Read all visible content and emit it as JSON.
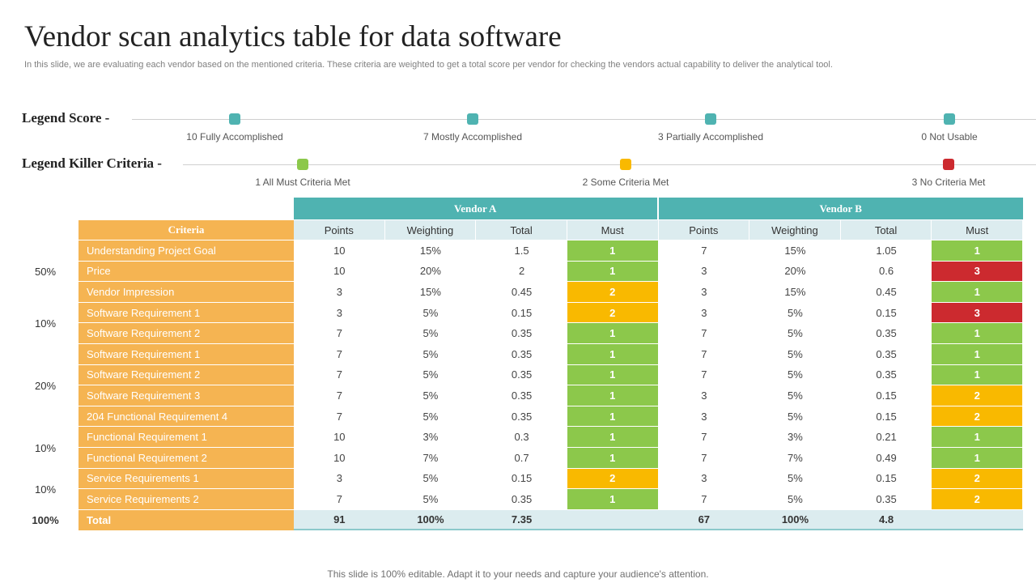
{
  "title": "Vendor scan analytics table for data software",
  "subtitle": "In this slide, we are evaluating each vendor based on the mentioned criteria. These criteria are weighted to get a total score per vendor for checking the vendors actual capability to deliver the analytical tool.",
  "legend_score": {
    "label": "Legend Score -",
    "items": [
      {
        "text": "10 Fully Accomplished",
        "color": "#4fb3b1"
      },
      {
        "text": "7 Mostly Accomplished",
        "color": "#4fb3b1"
      },
      {
        "text": "3 Partially Accomplished",
        "color": "#4fb3b1"
      },
      {
        "text": "0 Not Usable",
        "color": "#4fb3b1"
      }
    ]
  },
  "legend_killer": {
    "label": "Legend Killer Criteria -",
    "items": [
      {
        "text": "1 All Must Criteria Met",
        "color": "#8cc84b"
      },
      {
        "text": "2 Some Criteria Met",
        "color": "#f9b900"
      },
      {
        "text": "3 No Criteria Met",
        "color": "#cc2a2f"
      }
    ]
  },
  "must_colors": {
    "1": "#8cc84b",
    "2": "#f9b900",
    "3": "#cc2a2f"
  },
  "table": {
    "criteria_header": "Criteria",
    "vendors": [
      "Vendor A",
      "Vendor B"
    ],
    "sub_headers": [
      "Points",
      "Weighting",
      "Total",
      "Must"
    ],
    "rows": [
      {
        "criteria": "Understanding Project Goal",
        "a": [
          "10",
          "15%",
          "1.5",
          "1"
        ],
        "b": [
          "7",
          "15%",
          "1.05",
          "1"
        ]
      },
      {
        "criteria": "Price",
        "a": [
          "10",
          "20%",
          "2",
          "1"
        ],
        "b": [
          "3",
          "20%",
          "0.6",
          "3"
        ]
      },
      {
        "criteria": "Vendor Impression",
        "a": [
          "3",
          "15%",
          "0.45",
          "2"
        ],
        "b": [
          "3",
          "15%",
          "0.45",
          "1"
        ]
      },
      {
        "criteria": "Software Requirement  1",
        "a": [
          "3",
          "5%",
          "0.15",
          "2"
        ],
        "b": [
          "3",
          "5%",
          "0.15",
          "3"
        ]
      },
      {
        "criteria": "Software Requirement  2",
        "a": [
          "7",
          "5%",
          "0.35",
          "1"
        ],
        "b": [
          "7",
          "5%",
          "0.35",
          "1"
        ]
      },
      {
        "criteria": "Software Requirement  1",
        "a": [
          "7",
          "5%",
          "0.35",
          "1"
        ],
        "b": [
          "7",
          "5%",
          "0.35",
          "1"
        ]
      },
      {
        "criteria": "Software Requirement  2",
        "a": [
          "7",
          "5%",
          "0.35",
          "1"
        ],
        "b": [
          "7",
          "5%",
          "0.35",
          "1"
        ]
      },
      {
        "criteria": "Software Requirement  3",
        "a": [
          "7",
          "5%",
          "0.35",
          "1"
        ],
        "b": [
          "3",
          "5%",
          "0.15",
          "2"
        ]
      },
      {
        "criteria": "204 Functional Requirement  4",
        "a": [
          "7",
          "5%",
          "0.35",
          "1"
        ],
        "b": [
          "3",
          "5%",
          "0.15",
          "2"
        ]
      },
      {
        "criteria": "Functional Requirement  1",
        "a": [
          "10",
          "3%",
          "0.3",
          "1"
        ],
        "b": [
          "7",
          "3%",
          "0.21",
          "1"
        ]
      },
      {
        "criteria": "Functional Requirement  2",
        "a": [
          "10",
          "7%",
          "0.7",
          "1"
        ],
        "b": [
          "7",
          "7%",
          "0.49",
          "1"
        ]
      },
      {
        "criteria": "Service Requirements  1",
        "a": [
          "3",
          "5%",
          "0.15",
          "2"
        ],
        "b": [
          "3",
          "5%",
          "0.15",
          "2"
        ]
      },
      {
        "criteria": "Service Requirements  2",
        "a": [
          "7",
          "5%",
          "0.35",
          "1"
        ],
        "b": [
          "7",
          "5%",
          "0.35",
          "2"
        ]
      }
    ],
    "total": {
      "label": "Total",
      "a": [
        "91",
        "100%",
        "7.35",
        ""
      ],
      "b": [
        "67",
        "100%",
        "4.8",
        ""
      ]
    }
  },
  "group_weights": [
    "50%",
    "10%",
    "20%",
    "10%",
    "10%",
    "100%"
  ],
  "footer": "This slide is 100% editable. Adapt it to your needs and capture your audience's attention."
}
